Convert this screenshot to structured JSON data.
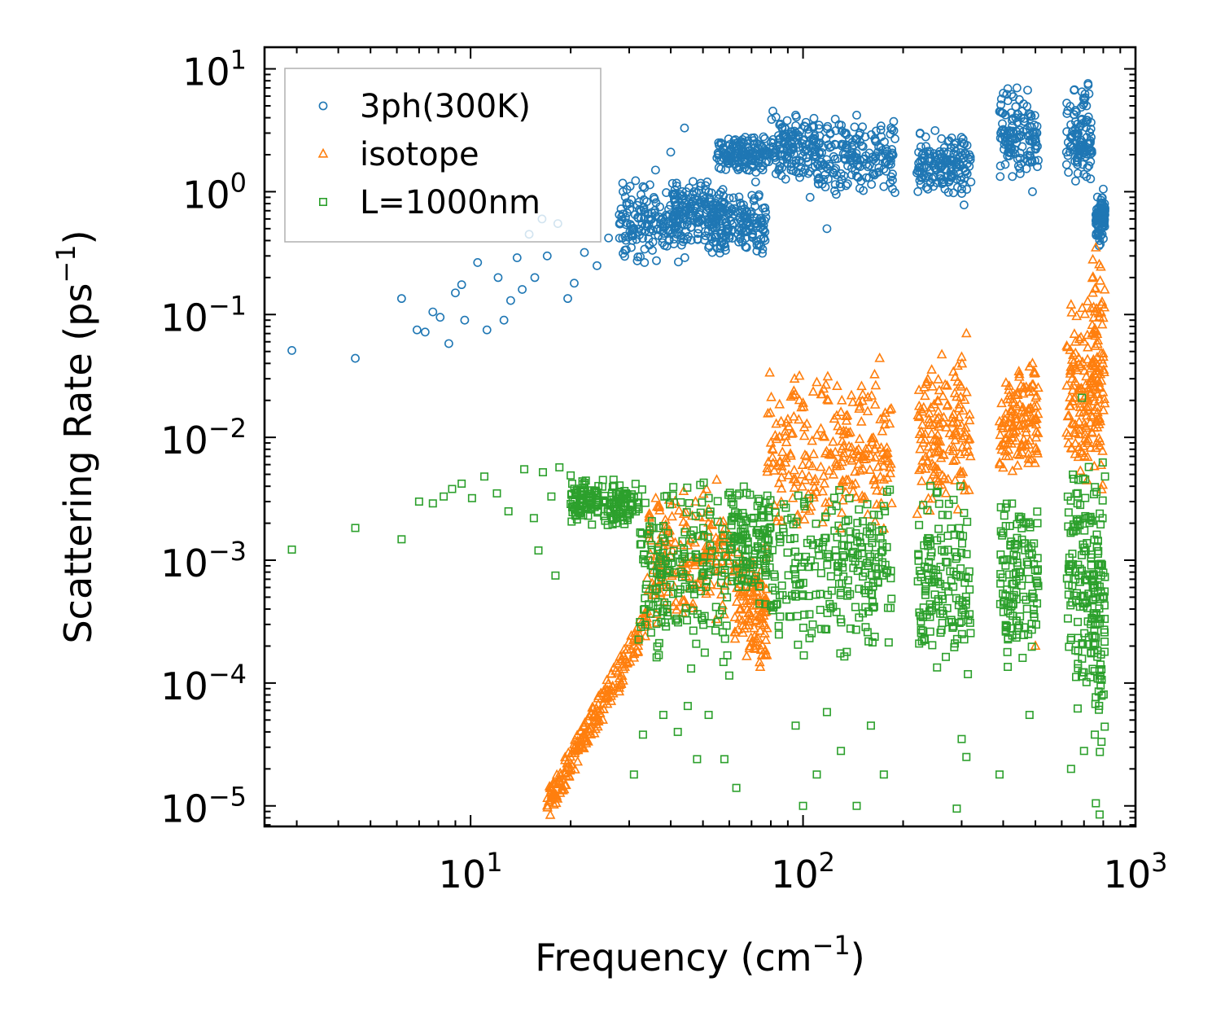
{
  "chart_data": {
    "type": "scatter",
    "xscale": "log",
    "yscale": "log",
    "xlim": [
      2.4,
      1000
    ],
    "ylim": [
      6.8e-06,
      15
    ],
    "xlabel": "Frequency",
    "xlabel_unit": "(cm",
    "xlabel_exp": "−1",
    "xlabel_close": ")",
    "ylabel": "Scattering Rate",
    "ylabel_unit": "(ps",
    "ylabel_exp": "−1",
    "ylabel_close": ")",
    "xticks": [
      {
        "value": 10,
        "base": "10",
        "exp": "1"
      },
      {
        "value": 100,
        "base": "10",
        "exp": "2"
      },
      {
        "value": 1000,
        "base": "10",
        "exp": "3"
      }
    ],
    "yticks": [
      {
        "value": 10,
        "base": "10",
        "exp": "1"
      },
      {
        "value": 1,
        "base": "10",
        "exp": "0"
      },
      {
        "value": 0.1,
        "base": "10",
        "exp": "−1"
      },
      {
        "value": 0.01,
        "base": "10",
        "exp": "−2"
      },
      {
        "value": 0.001,
        "base": "10",
        "exp": "−3"
      },
      {
        "value": 0.0001,
        "base": "10",
        "exp": "−4"
      },
      {
        "value": 1e-05,
        "base": "10",
        "exp": "−5"
      }
    ],
    "legend_position": "top-left",
    "series": [
      {
        "name": "3ph(300K)",
        "marker": "circle",
        "color": "#1f77b4",
        "points": [
          [
            2.9,
            0.051
          ],
          [
            4.5,
            0.044
          ],
          [
            6.2,
            0.135
          ],
          [
            6.9,
            0.075
          ],
          [
            7.3,
            0.072
          ],
          [
            7.7,
            0.105
          ],
          [
            8.1,
            0.095
          ],
          [
            8.6,
            0.058
          ],
          [
            9.0,
            0.15
          ],
          [
            9.4,
            0.175
          ],
          [
            9.6,
            0.09
          ],
          [
            10.5,
            0.265
          ],
          [
            11.2,
            0.075
          ],
          [
            12.1,
            0.2
          ],
          [
            12.6,
            0.09
          ],
          [
            13.2,
            0.13
          ],
          [
            13.8,
            0.29
          ],
          [
            14.3,
            0.16
          ],
          [
            15.0,
            0.45
          ],
          [
            15.6,
            0.2
          ],
          [
            16.4,
            0.6
          ],
          [
            17.0,
            0.3
          ],
          [
            18.3,
            0.55
          ],
          [
            19.6,
            0.135
          ],
          [
            20.5,
            0.18
          ],
          [
            22.0,
            0.32
          ],
          [
            24.0,
            0.25
          ],
          [
            26.0,
            0.42
          ],
          [
            28.0,
            0.65
          ],
          [
            30.0,
            0.8
          ],
          [
            33.0,
            1.1
          ],
          [
            36.0,
            1.5
          ],
          [
            40.0,
            2.1
          ],
          [
            44.0,
            3.3
          ],
          [
            47.0,
            1.0
          ],
          [
            52.0,
            0.35
          ],
          [
            56.0,
            1.8
          ],
          [
            62.0,
            2.6
          ],
          [
            66.0,
            0.55
          ],
          [
            72.0,
            1.2
          ],
          [
            76.0,
            2.8
          ],
          [
            85.0,
            3.5
          ],
          [
            95.0,
            4.2
          ],
          [
            105.0,
            0.9
          ],
          [
            112.0,
            2.5
          ],
          [
            118.0,
            0.5
          ],
          [
            125.0,
            3.9
          ],
          [
            135.0,
            2.4
          ],
          [
            145.0,
            4.2
          ],
          [
            155.0,
            1.3
          ],
          [
            165.0,
            1.9
          ],
          [
            175.0,
            1.1
          ],
          [
            185.0,
            2.0
          ],
          [
            225.0,
            3.0
          ],
          [
            250.0,
            1.8
          ],
          [
            275.0,
            2.6
          ],
          [
            295.0,
            1.4
          ],
          [
            305.0,
            0.78
          ],
          [
            320.0,
            1.2
          ],
          [
            390.0,
            4.5
          ],
          [
            410.0,
            6.2
          ],
          [
            440.0,
            7.0
          ],
          [
            470.0,
            3.2
          ],
          [
            490.0,
            1.0
          ],
          [
            510.0,
            1.8
          ],
          [
            620.0,
            2.1
          ],
          [
            660.0,
            4.6
          ],
          [
            690.0,
            6.5
          ],
          [
            720.0,
            7.6
          ],
          [
            760.0,
            0.65
          ],
          [
            780.0,
            0.4
          ],
          [
            800.0,
            1.05
          ]
        ],
        "bands": [
          {
            "xmin": 28,
            "xmax": 45,
            "ymin": 0.25,
            "ymax": 1.3
          },
          {
            "xmin": 40,
            "xmax": 58,
            "ymin": 0.3,
            "ymax": 1.4
          },
          {
            "xmin": 52,
            "xmax": 78,
            "ymin": 0.3,
            "ymax": 1.0
          },
          {
            "xmin": 55,
            "xmax": 80,
            "ymin": 1.4,
            "ymax": 2.9
          },
          {
            "xmin": 80,
            "xmax": 110,
            "ymin": 1.2,
            "ymax": 4.6
          },
          {
            "xmin": 110,
            "xmax": 190,
            "ymin": 0.9,
            "ymax": 4.0
          },
          {
            "xmin": 220,
            "xmax": 320,
            "ymin": 0.9,
            "ymax": 3.2
          },
          {
            "xmin": 390,
            "xmax": 510,
            "ymin": 1.2,
            "ymax": 7.5
          },
          {
            "xmin": 620,
            "xmax": 740,
            "ymin": 1.0,
            "ymax": 7.5
          },
          {
            "xmin": 760,
            "xmax": 810,
            "ymin": 0.35,
            "ymax": 1.0
          }
        ]
      },
      {
        "name": "isotope",
        "marker": "triangle",
        "color": "#ff7f0e",
        "points": [
          [
            17.0,
            1e-05
          ],
          [
            18.0,
            1.5e-05
          ],
          [
            19.5,
            2.2e-05
          ],
          [
            21.0,
            3e-05
          ],
          [
            23.0,
            3.8e-05
          ],
          [
            25.0,
            5e-05
          ],
          [
            28.0,
            8.5e-05
          ],
          [
            31.0,
            0.00016
          ],
          [
            34.0,
            0.0003
          ],
          [
            55.0,
            0.0045
          ],
          [
            60.0,
            0.0016
          ],
          [
            70.0,
            0.00035
          ],
          [
            72.0,
            0.0002
          ],
          [
            80.0,
            0.009
          ],
          [
            90.0,
            0.014
          ],
          [
            100.0,
            0.019
          ],
          [
            110.0,
            0.028
          ],
          [
            130.0,
            0.016
          ],
          [
            150.0,
            0.026
          ],
          [
            170.0,
            0.044
          ],
          [
            175.0,
            0.0018
          ],
          [
            230.0,
            0.009
          ],
          [
            270.0,
            0.012
          ],
          [
            300.0,
            0.045
          ],
          [
            310.0,
            0.07
          ],
          [
            400.0,
            0.009
          ],
          [
            440.0,
            0.014
          ],
          [
            490.0,
            0.04
          ],
          [
            500.0,
            0.0002
          ],
          [
            640.0,
            0.12
          ],
          [
            700.0,
            0.06
          ],
          [
            760.0,
            0.35
          ],
          [
            790.0,
            0.12
          ]
        ],
        "bands": [
          {
            "xmin": 17,
            "xmax": 34,
            "ymin": 1e-05,
            "ymax": 0.00032,
            "trend": "rising"
          },
          {
            "xmin": 34,
            "xmax": 60,
            "ymin": 0.0003,
            "ymax": 0.004
          },
          {
            "xmin": 62,
            "xmax": 78,
            "ymin": 0.00012,
            "ymax": 0.0015
          },
          {
            "xmin": 78,
            "xmax": 185,
            "ymin": 0.0015,
            "ymax": 0.04
          },
          {
            "xmin": 220,
            "xmax": 320,
            "ymin": 0.002,
            "ymax": 0.065
          },
          {
            "xmin": 390,
            "xmax": 510,
            "ymin": 0.004,
            "ymax": 0.045
          },
          {
            "xmin": 620,
            "xmax": 740,
            "ymin": 0.004,
            "ymax": 0.13
          },
          {
            "xmin": 740,
            "xmax": 810,
            "ymin": 0.003,
            "ymax": 0.35
          }
        ]
      },
      {
        "name": "L=1000nm",
        "marker": "square",
        "color": "#2ca02c",
        "points": [
          [
            2.9,
            0.00122
          ],
          [
            4.5,
            0.00183
          ],
          [
            6.2,
            0.00148
          ],
          [
            7.0,
            0.003
          ],
          [
            7.7,
            0.0029
          ],
          [
            8.3,
            0.0033
          ],
          [
            8.8,
            0.0038
          ],
          [
            9.4,
            0.0042
          ],
          [
            10.1,
            0.0032
          ],
          [
            11.0,
            0.0048
          ],
          [
            12.0,
            0.0035
          ],
          [
            13.0,
            0.0025
          ],
          [
            14.5,
            0.0055
          ],
          [
            15.5,
            0.0022
          ],
          [
            16.5,
            0.0052
          ],
          [
            17.5,
            0.0033
          ],
          [
            18.5,
            0.0057
          ],
          [
            20.0,
            0.0049
          ],
          [
            22.0,
            0.0041
          ],
          [
            25.0,
            0.0045
          ],
          [
            16.0,
            0.0012
          ],
          [
            18.0,
            0.00075
          ],
          [
            31.0,
            1.8e-05
          ],
          [
            33.0,
            3.8e-05
          ],
          [
            38.0,
            5.5e-05
          ],
          [
            42.0,
            4e-05
          ],
          [
            45.0,
            6.5e-05
          ],
          [
            48.0,
            2.4e-05
          ],
          [
            52.0,
            5.5e-05
          ],
          [
            58.0,
            2.4e-05
          ],
          [
            63.0,
            1.4e-05
          ],
          [
            60.0,
            0.000115
          ],
          [
            95.0,
            4.5e-05
          ],
          [
            100.0,
            1e-05
          ],
          [
            110.0,
            1.8e-05
          ],
          [
            118.0,
            5.8e-05
          ],
          [
            130.0,
            2.8e-05
          ],
          [
            145.0,
            1e-05
          ],
          [
            160.0,
            4.5e-05
          ],
          [
            175.0,
            1.8e-05
          ],
          [
            290.0,
            9.5e-06
          ],
          [
            300.0,
            3.5e-05
          ],
          [
            310.0,
            2.5e-05
          ],
          [
            390.0,
            1.8e-05
          ],
          [
            480.0,
            5.5e-05
          ],
          [
            640.0,
            2e-05
          ],
          [
            670.0,
            6.2e-05
          ],
          [
            700.0,
            2.8e-05
          ],
          [
            690.0,
            0.021
          ],
          [
            760.0,
            1.05e-05
          ],
          [
            780.0,
            8.5e-06
          ]
        ],
        "bands": [
          {
            "xmin": 20,
            "xmax": 32,
            "ymin": 0.0018,
            "ymax": 0.0048
          },
          {
            "xmin": 32,
            "xmax": 60,
            "ymin": 0.00012,
            "ymax": 0.0048
          },
          {
            "xmin": 60,
            "xmax": 80,
            "ymin": 0.0004,
            "ymax": 0.0048
          },
          {
            "xmin": 80,
            "xmax": 185,
            "ymin": 0.00015,
            "ymax": 0.005
          },
          {
            "xmin": 220,
            "xmax": 320,
            "ymin": 0.0001,
            "ymax": 0.0045
          },
          {
            "xmin": 390,
            "xmax": 510,
            "ymin": 0.00012,
            "ymax": 0.004
          },
          {
            "xmin": 620,
            "xmax": 740,
            "ymin": 8e-05,
            "ymax": 0.01
          },
          {
            "xmin": 740,
            "xmax": 810,
            "ymin": 2e-05,
            "ymax": 0.008
          }
        ]
      }
    ]
  }
}
